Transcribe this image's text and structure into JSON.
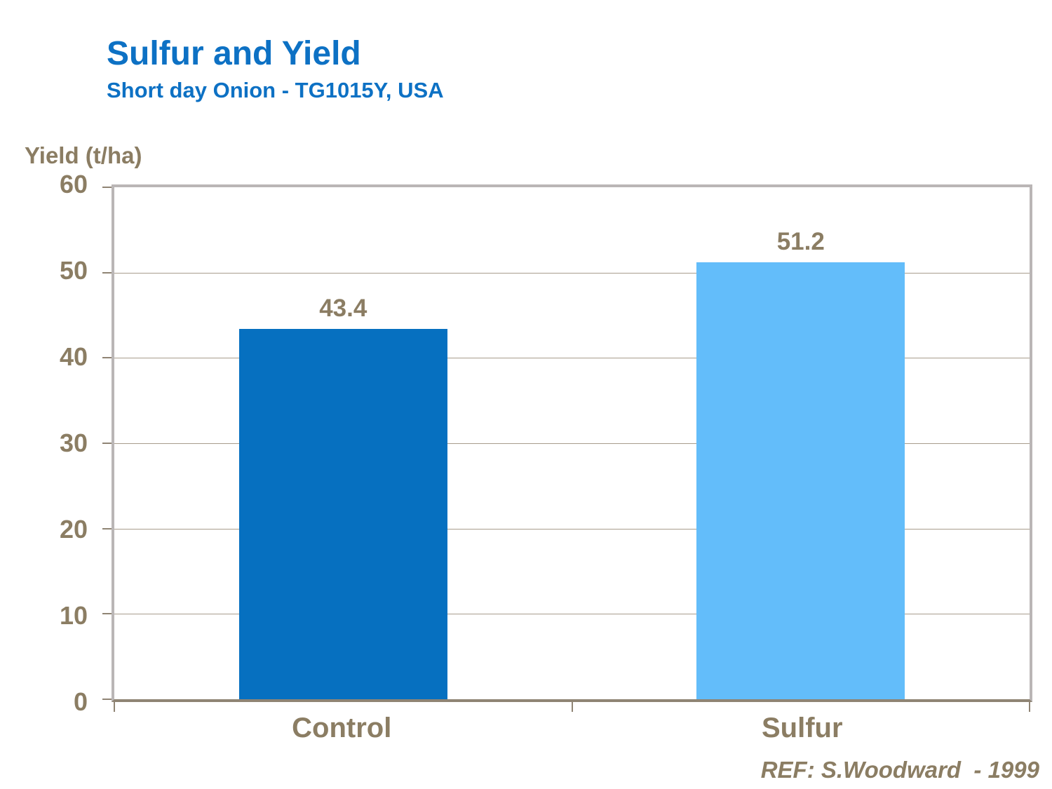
{
  "header": {
    "title": "Sulfur and Yield",
    "subtitle": "Short day Onion - TG1015Y, USA"
  },
  "chart_data": {
    "type": "bar",
    "title": "Sulfur and Yield",
    "subtitle": "Short day Onion - TG1015Y, USA",
    "y_axis_title": "Yield (t/ha)",
    "categories": [
      "Control",
      "Sulfur"
    ],
    "values": [
      43.4,
      51.2
    ],
    "value_labels": [
      "43.4",
      "51.2"
    ],
    "bar_colors": [
      "#0670c0",
      "#63bdfa"
    ],
    "ylim": [
      0,
      60
    ],
    "ytick_interval": 10,
    "yticks": [
      "60",
      "50",
      "40",
      "30",
      "20",
      "10",
      "0"
    ],
    "grid": "horizontal gridlines on",
    "legend": "none"
  },
  "footer": {
    "reference": "REF: S.Woodward  - 1999"
  },
  "colors": {
    "title_blue": "#0d71c4",
    "text_brown": "#8b7d63",
    "control_bar": "#0670c0",
    "sulfur_bar": "#63bdfa",
    "gridline": "#a89c8c",
    "axis_frame": "#bab6b6",
    "baseline": "#8f8474"
  }
}
